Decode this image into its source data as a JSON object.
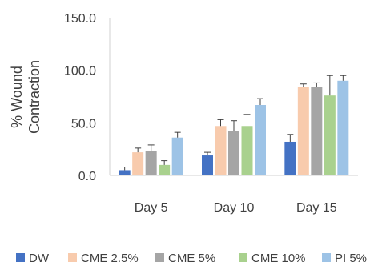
{
  "chart_data": {
    "type": "bar",
    "title": "",
    "xlabel": "",
    "ylabel_lines": [
      "% Wound",
      "Contraction"
    ],
    "categories": [
      "Day 5",
      "Day 10",
      "Day 15"
    ],
    "ylim": [
      0,
      150
    ],
    "yticks": [
      0,
      50,
      100,
      150
    ],
    "ytick_labels": [
      "0.0",
      "50.0",
      "100.0",
      "150.0"
    ],
    "grid": false,
    "legend_position": "bottom",
    "series": [
      {
        "name": "DW",
        "color": "#4472c4",
        "values": [
          5,
          19,
          32
        ],
        "errors": [
          3,
          3,
          7
        ]
      },
      {
        "name": "CME 2.5%",
        "color": "#f8cbad",
        "values": [
          22,
          47,
          84
        ],
        "errors": [
          4,
          6,
          3
        ]
      },
      {
        "name": "CME 5%",
        "color": "#a5a5a5",
        "values": [
          23,
          42,
          84
        ],
        "errors": [
          6,
          10,
          4
        ]
      },
      {
        "name": "CME 10%",
        "color": "#a9d18e",
        "values": [
          10,
          47,
          76
        ],
        "errors": [
          4,
          11,
          19
        ]
      },
      {
        "name": "PI 5%",
        "color": "#9dc3e6",
        "values": [
          36,
          67,
          90
        ],
        "errors": [
          5,
          6,
          5
        ]
      }
    ]
  }
}
